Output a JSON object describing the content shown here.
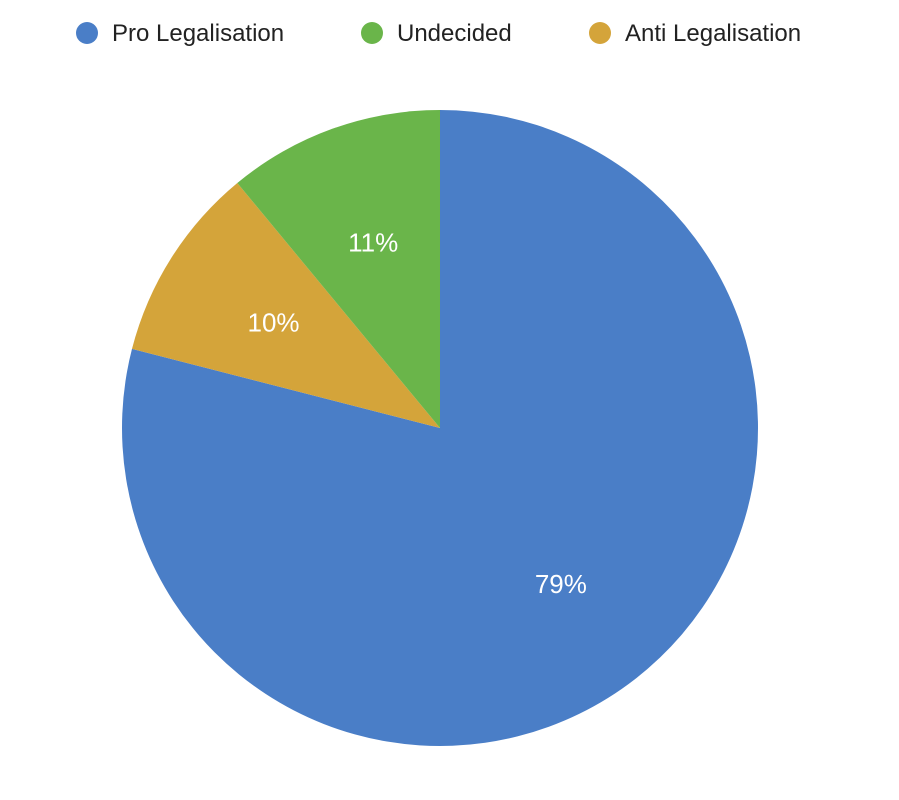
{
  "chart_data": {
    "type": "pie",
    "title": "",
    "legend_position": "top",
    "start_angle_deg": 90,
    "direction": "clockwise",
    "slices": [
      {
        "name": "Pro Legalisation",
        "value": 79,
        "label": "79%",
        "color": "#4A7EC7"
      },
      {
        "name": "Anti Legalisation",
        "value": 10,
        "label": "10%",
        "color": "#D4A43A"
      },
      {
        "name": "Undecided",
        "value": 11,
        "label": "11%",
        "color": "#6AB54A"
      }
    ],
    "legend": [
      {
        "name": "Pro Legalisation",
        "color": "#4A7EC7"
      },
      {
        "name": "Undecided",
        "color": "#6AB54A"
      },
      {
        "name": "Anti Legalisation",
        "color": "#D4A43A"
      }
    ]
  }
}
